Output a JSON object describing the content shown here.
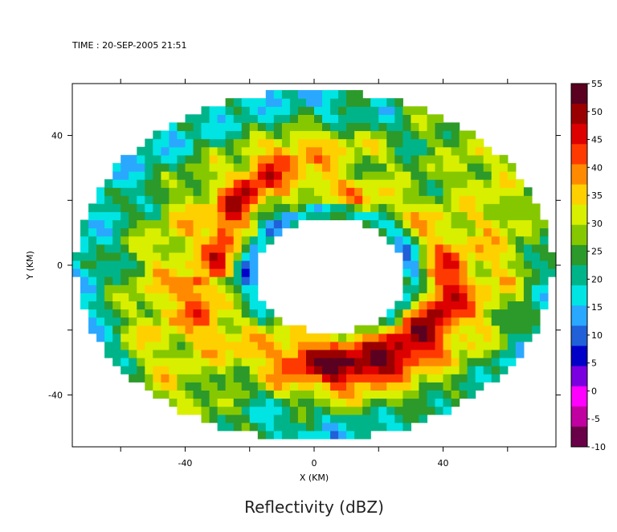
{
  "chart_data": {
    "type": "heatmap",
    "time_label": "TIME : 20-SEP-2005 21:51",
    "title": "Reflectivity (dBZ)",
    "xlabel": "X (KM)",
    "ylabel": "Y (KM)",
    "xlim": [
      -75,
      75
    ],
    "ylim": [
      -56,
      56
    ],
    "x_ticks": [
      -40,
      0,
      40
    ],
    "y_ticks": [
      -40,
      0,
      40
    ],
    "colorbar": {
      "min": -10,
      "max": 55,
      "ticks": [
        "55",
        "50",
        "45",
        "40",
        "35",
        "30",
        "25",
        "20",
        "15",
        "10",
        "5",
        "0",
        "-5",
        "-10"
      ],
      "colors": [
        "#5a0020",
        "#9b0000",
        "#dd0000",
        "#ff3a00",
        "#ff8a00",
        "#ffd000",
        "#d9ef00",
        "#86c800",
        "#2b9a2b",
        "#00b48a",
        "#00e4e4",
        "#2aa8ff",
        "#2060d8",
        "#0000c8",
        "#7a00e0",
        "#ff00ff",
        "#c000a0",
        "#6a0048"
      ]
    },
    "field": {
      "domain_radius_x_km": 74,
      "domain_radius_y_km": 54,
      "eye_center_km": [
        5,
        -3
      ],
      "eye_radius_km": [
        23,
        18
      ],
      "eyewall_peak_dbz": 47,
      "band_peak_dbz": 45
    }
  }
}
